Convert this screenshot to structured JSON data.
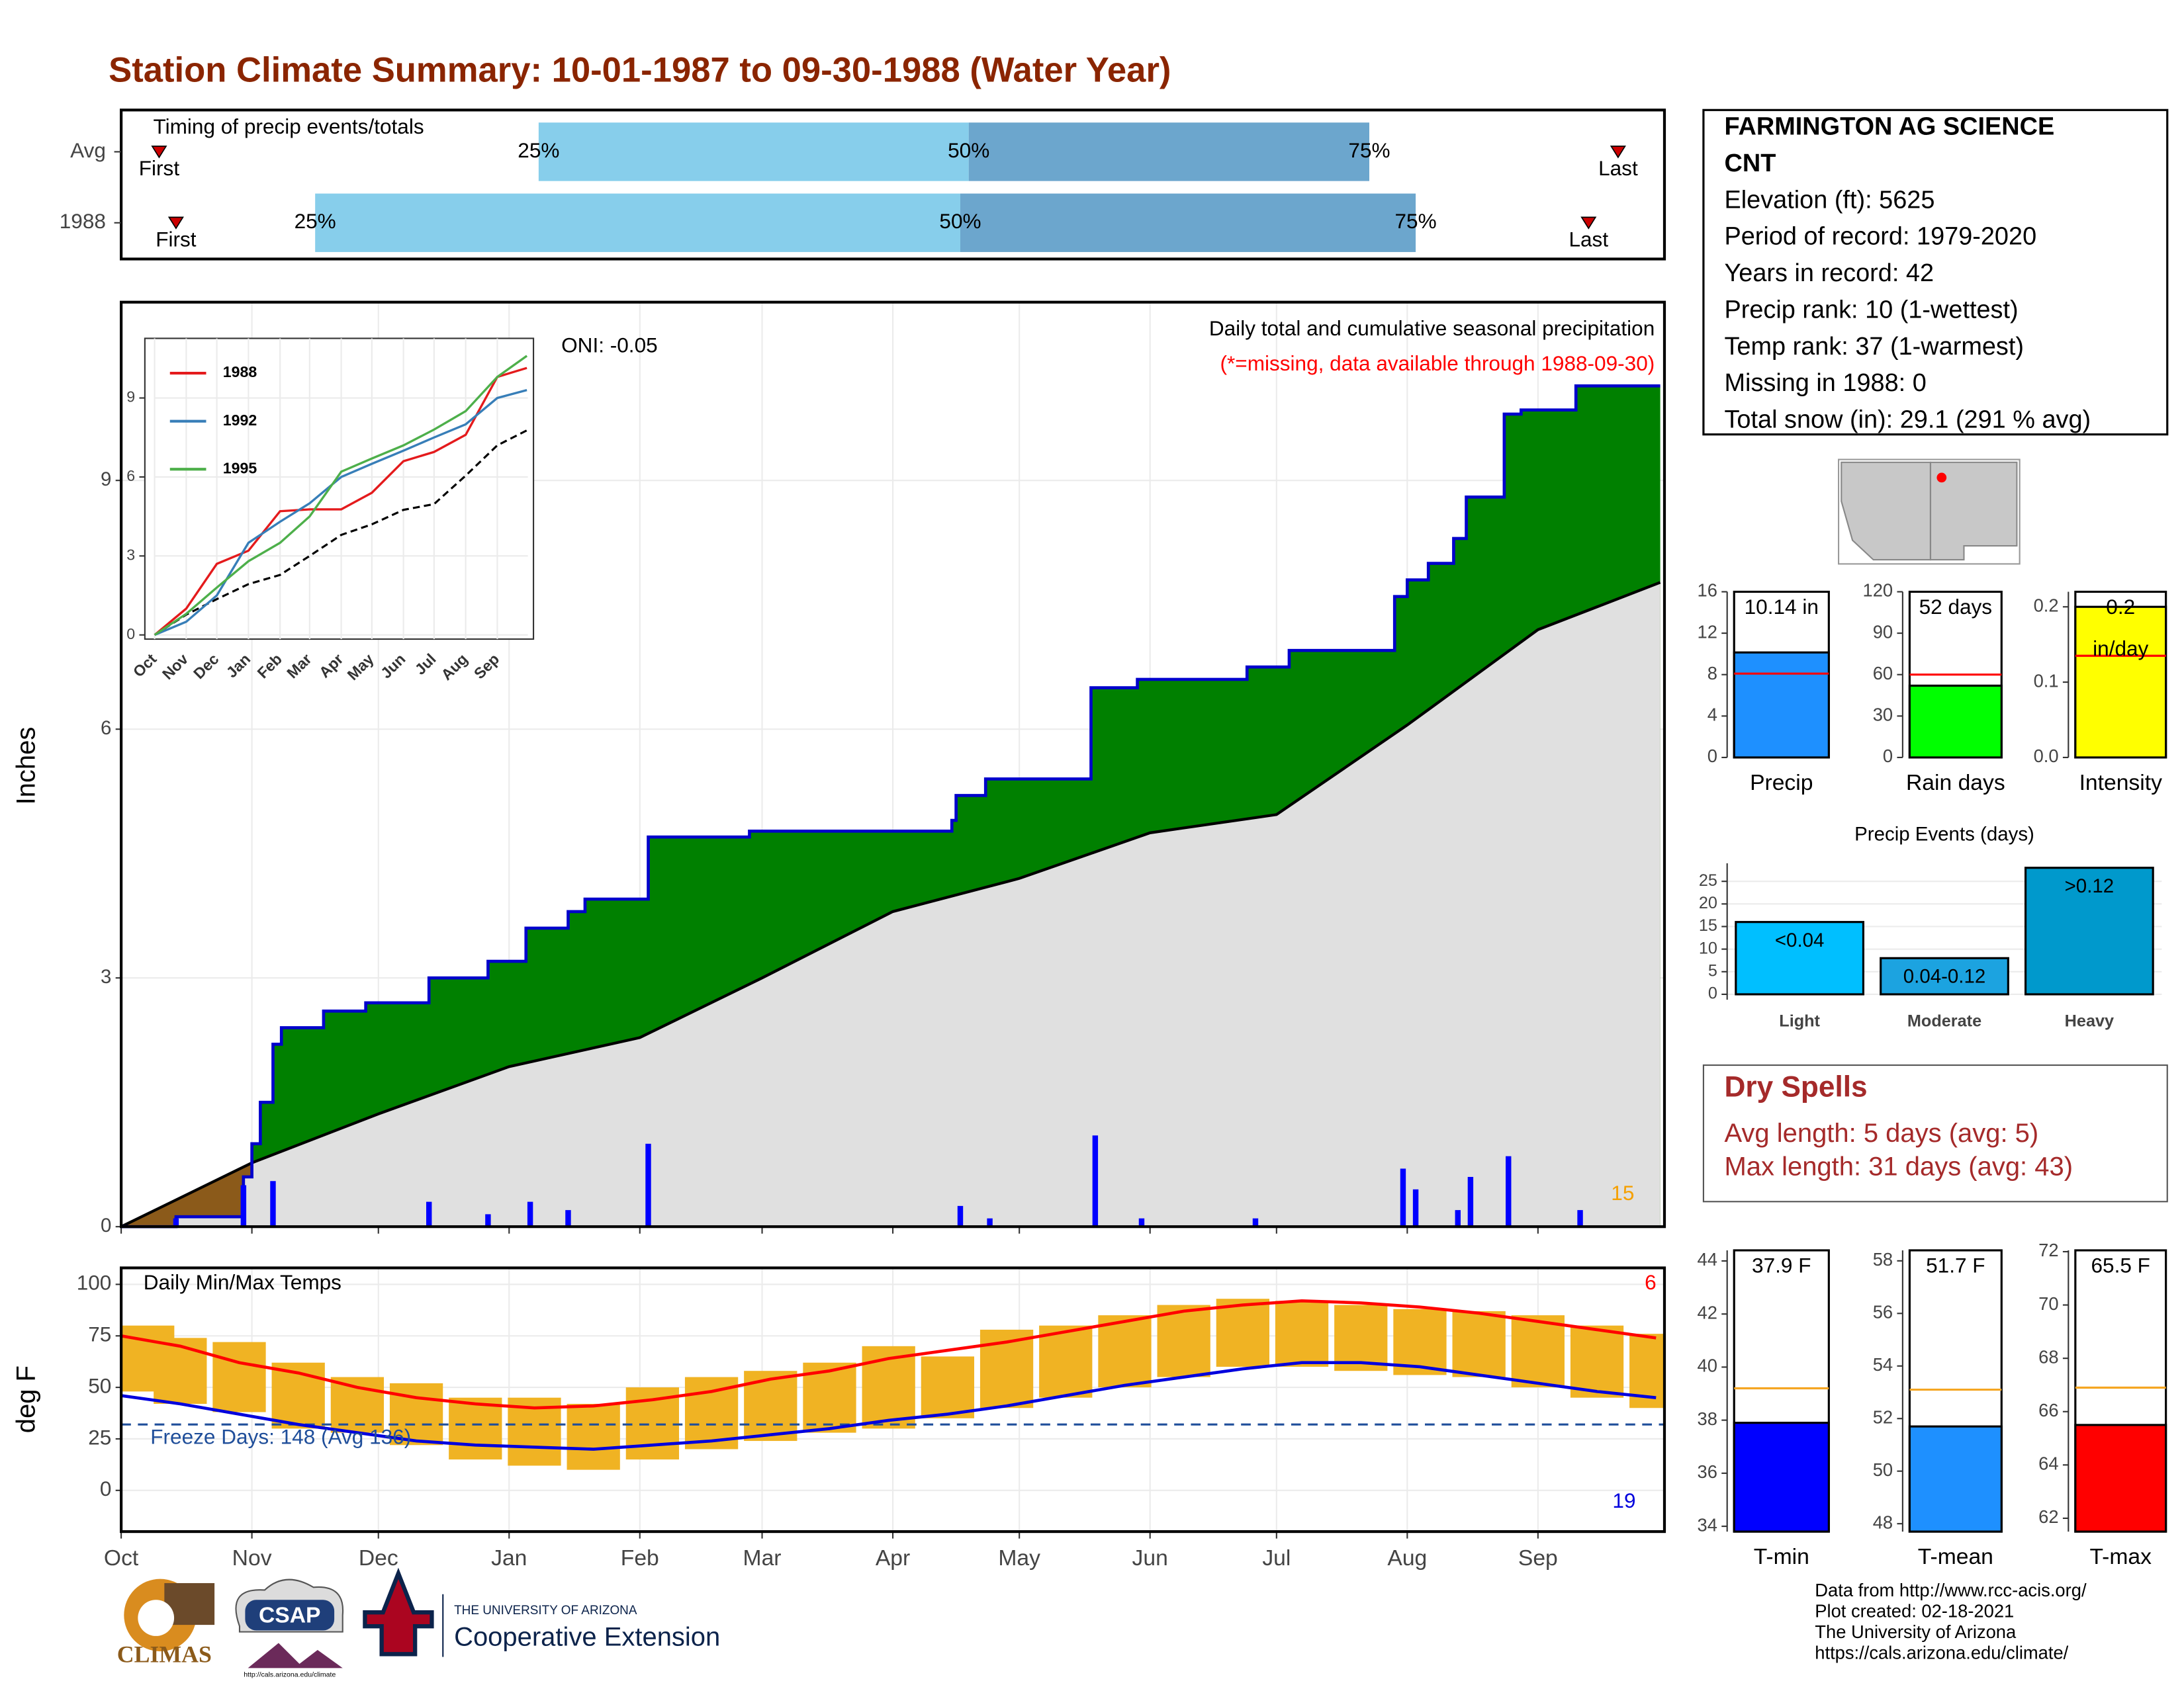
{
  "title": "Station Climate Summary: 10-01-1987 to 09-30-1988 (Water Year)",
  "station": {
    "lines": [
      "FARMINGTON AG SCIENCE",
      "CNT",
      "Elevation (ft): 5625",
      "Period of record: 1979-2020",
      "Years in record: 42",
      "Precip rank: 10 (1-wettest)",
      "Temp rank: 37 (1-warmest)",
      "Missing in 1988: 0",
      "Total snow (in): 29.1 (291 % avg)"
    ]
  },
  "dry_spells": {
    "title": "Dry Spells",
    "lines": [
      "Avg length: 5 days (avg: 5)",
      "Max length: 31 days (avg: 43)"
    ]
  },
  "footer": [
    "Data from http://www.rcc-acis.org/",
    "Plot created: 02-18-2021",
    "The University of Arizona",
    "https://cals.arizona.edu/climate/"
  ],
  "logos": {
    "climas": "CLIMAS",
    "csap": "CSAP",
    "csap_url": "http://cals.arizona.edu/climate",
    "university": "THE UNIVERSITY OF ARIZONA",
    "extension": "Cooperative Extension"
  },
  "chart_data": [
    {
      "type": "timing",
      "title": "Timing of precip events/totals",
      "categories": [
        "Avg",
        "1988"
      ],
      "markers": [
        "First",
        "25%",
        "50%",
        "75%",
        "Last"
      ],
      "values": [
        [
          9,
          99,
          201,
          296,
          355
        ],
        [
          13,
          46,
          199,
          307,
          348
        ]
      ],
      "xlim": [
        0,
        366
      ],
      "colors": [
        "#87ceeb",
        "#6ca6cd"
      ],
      "marker_color": "#cc0000"
    },
    {
      "type": "area",
      "ylabel": "Inches",
      "annotations": [
        "ONI: -0.05",
        "Daily total and cumulative seasonal precipitation",
        "(*=missing, data available through 1988-09-30)",
        "15"
      ],
      "xlim": [
        0,
        366
      ],
      "xticks": [
        0,
        31,
        61,
        92,
        123,
        152,
        183,
        213,
        244,
        274,
        305,
        336
      ],
      "ylim": [
        0,
        11.15
      ],
      "yticks": [
        0,
        3,
        6,
        9
      ],
      "grid": true,
      "series": [
        {
          "color": "#0000cc",
          "fill": "#008000",
          "x": [
            0,
            13,
            13,
            29,
            29,
            31,
            31,
            33,
            33,
            36,
            36,
            38,
            38,
            48,
            48,
            58,
            58,
            73,
            73,
            87,
            87,
            96,
            96,
            106,
            106,
            110,
            110,
            125,
            125,
            149,
            149,
            197,
            197,
            198,
            198,
            205,
            205,
            230,
            230,
            241,
            241,
            267,
            267,
            277,
            277,
            302,
            302,
            305,
            305,
            310,
            310,
            316,
            316,
            319,
            319,
            328,
            328,
            332,
            332,
            345,
            345,
            365
          ],
          "values": [
            0,
            0,
            0.12,
            0.12,
            0.6,
            0.6,
            1,
            1,
            1.5,
            1.5,
            2.2,
            2.2,
            2.4,
            2.4,
            2.6,
            2.6,
            2.7,
            2.7,
            3,
            3,
            3.2,
            3.2,
            3.6,
            3.6,
            3.8,
            3.8,
            3.95,
            3.95,
            4.7,
            4.7,
            4.77,
            4.77,
            4.9,
            4.9,
            5.2,
            5.2,
            5.4,
            5.4,
            6.5,
            6.5,
            6.6,
            6.6,
            6.75,
            6.75,
            6.95,
            6.95,
            7.6,
            7.6,
            7.8,
            7.8,
            8,
            8,
            8.3,
            8.3,
            8.8,
            8.8,
            9.8,
            9.8,
            9.85,
            9.85,
            10.14,
            10.14
          ]
        },
        {
          "color": "#000000",
          "fill": "#e0e0e0",
          "deficit_fill": "#8b5a1a",
          "x": [
            0,
            31,
            61,
            92,
            123,
            152,
            183,
            213,
            244,
            274,
            305,
            336,
            365
          ],
          "values": [
            0,
            0.77,
            1.36,
            1.93,
            2.28,
            3.0,
            3.8,
            4.2,
            4.75,
            4.97,
            6.05,
            7.2,
            7.77
          ]
        }
      ],
      "daily": {
        "color": "#0000ff",
        "x": [
          13,
          29,
          36,
          73,
          87,
          97,
          106,
          125,
          199,
          206,
          231,
          242,
          269,
          304,
          307,
          317,
          320,
          329,
          346
        ],
        "values": [
          0.1,
          0.5,
          0.55,
          0.3,
          0.15,
          0.3,
          0.2,
          1.0,
          0.25,
          0.1,
          1.1,
          0.1,
          0.1,
          0.7,
          0.45,
          0.2,
          0.6,
          0.85,
          0.2
        ]
      }
    },
    {
      "type": "line",
      "x": [
        0,
        31,
        61,
        92,
        123,
        152,
        183,
        213,
        244,
        274,
        305,
        336,
        365
      ],
      "xlim": [
        0,
        366
      ],
      "xticks": [
        {
          "value": 0,
          "label": "Oct"
        },
        {
          "value": 31,
          "label": "Nov"
        },
        {
          "value": 61,
          "label": "Dec"
        },
        {
          "value": 92,
          "label": "Jan"
        },
        {
          "value": 123,
          "label": "Feb"
        },
        {
          "value": 152,
          "label": "Mar"
        },
        {
          "value": 183,
          "label": "Apr"
        },
        {
          "value": 213,
          "label": "May"
        },
        {
          "value": 244,
          "label": "Jun"
        },
        {
          "value": 274,
          "label": "Jul"
        },
        {
          "value": 305,
          "label": "Aug"
        },
        {
          "value": 336,
          "label": "Sep"
        }
      ],
      "ylim": [
        0,
        11
      ],
      "yticks": [
        0,
        3,
        6,
        9
      ],
      "grid": true,
      "series": [
        {
          "name": "1988",
          "color": "#e41a1c",
          "values": [
            0,
            1,
            2.7,
            3.2,
            4.7,
            4.77,
            4.77,
            5.4,
            6.6,
            6.95,
            7.6,
            9.8,
            10.14
          ]
        },
        {
          "name": "1992",
          "color": "#377eb8",
          "values": [
            0,
            0.5,
            1.5,
            3.5,
            4.3,
            5,
            6,
            6.5,
            7,
            7.5,
            8,
            9,
            9.3
          ]
        },
        {
          "name": "1995",
          "color": "#4daf4a",
          "values": [
            0,
            0.8,
            1.8,
            2.8,
            3.5,
            4.5,
            6.2,
            6.7,
            7.2,
            7.8,
            8.5,
            9.8,
            10.6
          ]
        }
      ],
      "average": {
        "color": "#000000",
        "values": [
          0,
          0.77,
          1.36,
          1.93,
          2.28,
          3.0,
          3.8,
          4.2,
          4.75,
          4.97,
          6.05,
          7.2,
          7.77
        ]
      }
    },
    {
      "type": "range",
      "title": "Daily Min/Max Temps",
      "ylabel": "deg F",
      "annotations": [
        "Freeze Days: 148 (Avg 136)",
        "6",
        "19"
      ],
      "x": [
        0,
        14,
        28,
        42,
        56,
        70,
        84,
        98,
        112,
        126,
        140,
        154,
        168,
        182,
        196,
        210,
        224,
        238,
        252,
        266,
        280,
        294,
        308,
        322,
        336,
        350,
        364
      ],
      "xlim": [
        0,
        366
      ],
      "xticks": [
        {
          "value": 0,
          "label": "Oct"
        },
        {
          "value": 31,
          "label": "Nov"
        },
        {
          "value": 61,
          "label": "Dec"
        },
        {
          "value": 92,
          "label": "Jan"
        },
        {
          "value": 123,
          "label": "Feb"
        },
        {
          "value": 152,
          "label": "Mar"
        },
        {
          "value": 183,
          "label": "Apr"
        },
        {
          "value": 213,
          "label": "May"
        },
        {
          "value": 244,
          "label": "Jun"
        },
        {
          "value": 274,
          "label": "Jul"
        },
        {
          "value": 305,
          "label": "Aug"
        },
        {
          "value": 336,
          "label": "Sep"
        }
      ],
      "ylim": [
        -20,
        108
      ],
      "yticks": [
        0,
        25,
        50,
        75,
        100
      ],
      "grid": true,
      "high": [
        80,
        74,
        72,
        62,
        55,
        52,
        45,
        45,
        42,
        50,
        55,
        58,
        62,
        70,
        65,
        78,
        80,
        85,
        90,
        93,
        92,
        90,
        88,
        87,
        85,
        80,
        76
      ],
      "low": [
        48,
        42,
        38,
        30,
        28,
        22,
        15,
        12,
        10,
        15,
        20,
        24,
        28,
        30,
        35,
        40,
        45,
        50,
        55,
        60,
        60,
        58,
        56,
        55,
        50,
        45,
        40
      ],
      "bar_color": "#f0b323",
      "series": [
        {
          "color": "#ff0000",
          "values": [
            75,
            70,
            62,
            57,
            50,
            45,
            42,
            40,
            41,
            44,
            48,
            54,
            58,
            64,
            68,
            72,
            77,
            82,
            87,
            90,
            92,
            91,
            89,
            86,
            82,
            78,
            74
          ]
        },
        {
          "color": "#0000dd",
          "values": [
            46,
            42,
            37,
            32,
            28,
            24,
            22,
            21,
            20,
            22,
            24,
            27,
            30,
            34,
            37,
            41,
            46,
            51,
            55,
            59,
            62,
            62,
            60,
            56,
            52,
            48,
            45
          ]
        }
      ],
      "freeze_line": 32,
      "freeze_color": "#1f4e9a"
    },
    {
      "type": "gauge",
      "categories": [
        "Precip"
      ],
      "values": [
        10.14
      ],
      "value_labels": [
        "10.14 in"
      ],
      "average": 8.1,
      "color": "#1e90ff",
      "average_color": "#ff0000",
      "ylim": [
        0,
        16
      ],
      "yticks": [
        0,
        4,
        8,
        12,
        16
      ]
    },
    {
      "type": "gauge",
      "categories": [
        "Rain days"
      ],
      "values": [
        52
      ],
      "value_labels": [
        "52 days"
      ],
      "average": 60,
      "color": "#00ff00",
      "average_color": "#ff0000",
      "ylim": [
        0,
        120
      ],
      "yticks": [
        0,
        30,
        60,
        90,
        120
      ]
    },
    {
      "type": "gauge",
      "categories": [
        "Intensity"
      ],
      "values": [
        0.2
      ],
      "value_labels": [
        "0.2"
      ],
      "unit_label": "in/day",
      "average": 0.135,
      "color": "#ffff00",
      "average_color": "#ff0000",
      "ylim": [
        0,
        0.22
      ],
      "yticks": [
        {
          "value": 0,
          "label": "0.0"
        },
        0.1,
        0.2
      ]
    },
    {
      "type": "bar",
      "title": "Precip Events (days)",
      "categories": [
        "Light",
        "Moderate",
        "Heavy"
      ],
      "values": [
        16,
        8,
        28
      ],
      "value_labels": [
        "<0.04",
        "0.04-0.12",
        ">0.12"
      ],
      "colors": [
        "#00bfff",
        "#1ca3e0",
        "#0099cc"
      ],
      "ylim": [
        -1.2,
        29
      ],
      "yticks": [
        0,
        5,
        10,
        15,
        20,
        25
      ],
      "grid": true
    },
    {
      "type": "gauge",
      "categories": [
        "T-min"
      ],
      "values": [
        37.9
      ],
      "value_labels": [
        "37.9 F"
      ],
      "average": 39.2,
      "color": "#0000ff",
      "average_color": "#f5a623",
      "ylim": [
        33.8,
        44.4
      ],
      "yticks": [
        34,
        36,
        38,
        40,
        42,
        44
      ]
    },
    {
      "type": "gauge",
      "categories": [
        "T-mean"
      ],
      "values": [
        51.7
      ],
      "value_labels": [
        "51.7 F"
      ],
      "average": 53.1,
      "color": "#1e90ff",
      "average_color": "#f5a623",
      "ylim": [
        47.7,
        58.4
      ],
      "yticks": [
        48,
        50,
        52,
        54,
        56,
        58
      ]
    },
    {
      "type": "gauge",
      "categories": [
        "T-max"
      ],
      "values": [
        65.5
      ],
      "value_labels": [
        "65.5 F"
      ],
      "average": 66.9,
      "color": "#ff0000",
      "average_color": "#f5a623",
      "ylim": [
        61.5,
        72.05
      ],
      "yticks": [
        62,
        64,
        66,
        68,
        70,
        72
      ]
    }
  ]
}
